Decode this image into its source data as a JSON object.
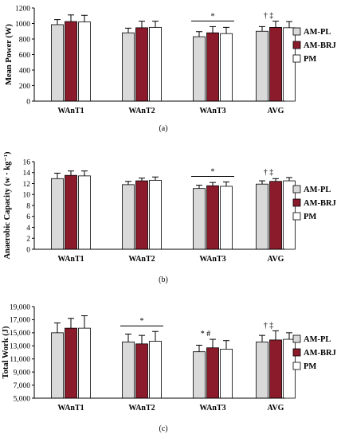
{
  "colors": {
    "AM-PL": "#d9d9d9",
    "AM-BRJ": "#8b1a2b",
    "PM": "#ffffff",
    "outline": "#000000"
  },
  "legend": [
    "AM-PL",
    "AM-BRJ",
    "PM"
  ],
  "chart_data": [
    {
      "type": "bar",
      "panel_label": "(a)",
      "ylabel": "Mean Power (W)",
      "ylim": [
        0,
        1200
      ],
      "yticks": [
        "0",
        "200",
        "400",
        "600",
        "800",
        "1000",
        "1200"
      ],
      "categories": [
        "WAnT1",
        "WAnT2",
        "WAnT3",
        "AVG"
      ],
      "series": [
        {
          "name": "AM-PL",
          "values": [
            985,
            880,
            830,
            900
          ],
          "errors": [
            65,
            60,
            65,
            60
          ]
        },
        {
          "name": "AM-BRJ",
          "values": [
            1025,
            945,
            880,
            950
          ],
          "errors": [
            85,
            85,
            80,
            80
          ]
        },
        {
          "name": "PM",
          "values": [
            1020,
            950,
            870,
            945
          ],
          "errors": [
            85,
            80,
            80,
            80
          ]
        }
      ],
      "annotations": [
        {
          "type": "bracket",
          "category": "WAnT3",
          "text": "*"
        },
        {
          "type": "mark",
          "category": "AVG",
          "text": "† ‡"
        }
      ]
    },
    {
      "type": "bar",
      "panel_label": "(b)",
      "ylabel": "Anaerobic Capacity (w · kg⁻¹)",
      "ylim": [
        0,
        16
      ],
      "yticks": [
        "0",
        "2",
        "4",
        "6",
        "8",
        "10",
        "12",
        "14",
        "16"
      ],
      "categories": [
        "WAnT1",
        "WAnT2",
        "WAnT3",
        "AVG"
      ],
      "series": [
        {
          "name": "AM-PL",
          "values": [
            12.9,
            11.8,
            11.1,
            11.9
          ],
          "errors": [
            1.0,
            0.6,
            0.6,
            0.6
          ]
        },
        {
          "name": "AM-BRJ",
          "values": [
            13.5,
            12.5,
            11.6,
            12.4
          ],
          "errors": [
            0.8,
            0.5,
            0.6,
            0.5
          ]
        },
        {
          "name": "PM",
          "values": [
            13.4,
            12.6,
            11.5,
            12.5
          ],
          "errors": [
            0.9,
            0.6,
            0.8,
            0.6
          ]
        }
      ],
      "annotations": [
        {
          "type": "bracket",
          "category": "WAnT3",
          "text": "*"
        },
        {
          "type": "mark",
          "category": "AVG",
          "text": "† ‡"
        }
      ]
    },
    {
      "type": "bar",
      "panel_label": "(c)",
      "ylabel": "Total Work (J)",
      "ylim": [
        5000,
        19000
      ],
      "yticks": [
        "5,000",
        "7,000",
        "9,000",
        "11,000",
        "13,000",
        "15,000",
        "17,000",
        "19,000"
      ],
      "categories": [
        "WAnT1",
        "WAnT2",
        "WAnT3",
        "AVG"
      ],
      "series": [
        {
          "name": "AM-PL",
          "values": [
            15000,
            13600,
            12100,
            13600
          ],
          "errors": [
            1500,
            1200,
            1000,
            1000
          ]
        },
        {
          "name": "AM-BRJ",
          "values": [
            15700,
            13300,
            12700,
            13900
          ],
          "errors": [
            1500,
            1300,
            1300,
            1400
          ]
        },
        {
          "name": "PM",
          "values": [
            15700,
            13700,
            12500,
            14000
          ],
          "errors": [
            1900,
            1500,
            1300,
            1000
          ]
        }
      ],
      "annotations": [
        {
          "type": "bracket",
          "category": "WAnT2",
          "text": "*"
        },
        {
          "type": "mark",
          "category": "WAnT3",
          "text": "* #"
        },
        {
          "type": "mark",
          "category": "AVG",
          "text": "† ‡"
        }
      ]
    }
  ]
}
